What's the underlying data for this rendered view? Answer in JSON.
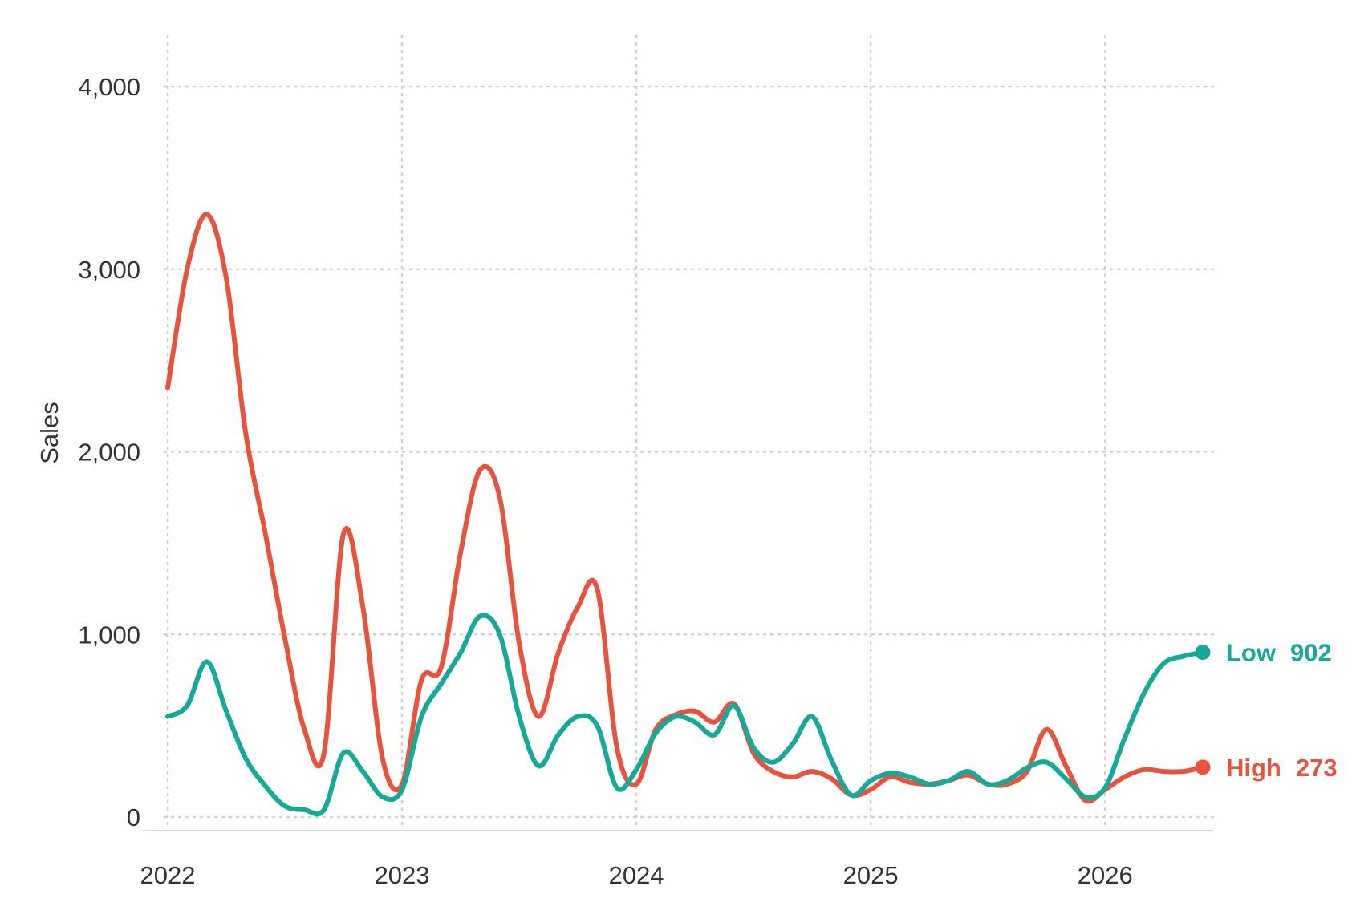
{
  "chart_data": {
    "type": "line",
    "xlabel": "",
    "ylabel": "Sales",
    "xlim": [
      2022,
      2026.5
    ],
    "ylim": [
      -60,
      4280
    ],
    "x_ticks": [
      {
        "value": 2022,
        "label": "2022"
      },
      {
        "value": 2023,
        "label": "2023"
      },
      {
        "value": 2024,
        "label": "2024"
      },
      {
        "value": 2025,
        "label": "2025"
      },
      {
        "value": 2026,
        "label": "2026"
      }
    ],
    "y_ticks": [
      {
        "value": 0,
        "label": "0"
      },
      {
        "value": 1000,
        "label": "1,000"
      },
      {
        "value": 2000,
        "label": "2,000"
      },
      {
        "value": 3000,
        "label": "3,000"
      },
      {
        "value": 4000,
        "label": "4,000"
      }
    ],
    "grid": true,
    "legend": "end-labels",
    "series": [
      {
        "name": "High",
        "color": "#e5543f",
        "end_value_label": "273",
        "x": [
          2022.0,
          2022.083,
          2022.167,
          2022.25,
          2022.333,
          2022.417,
          2022.5,
          2022.583,
          2022.667,
          2022.75,
          2022.833,
          2022.917,
          2023.0,
          2023.083,
          2023.167,
          2023.25,
          2023.333,
          2023.417,
          2023.5,
          2023.583,
          2023.667,
          2023.75,
          2023.833,
          2023.917,
          2024.0,
          2024.083,
          2024.167,
          2024.25,
          2024.333,
          2024.417,
          2024.5,
          2024.583,
          2024.667,
          2024.75,
          2024.833,
          2024.917,
          2025.0,
          2025.083,
          2025.167,
          2025.25,
          2025.333,
          2025.417,
          2025.5,
          2025.583,
          2025.667,
          2025.75,
          2025.833,
          2025.917,
          2026.0,
          2026.083,
          2026.167,
          2026.25,
          2026.333,
          2026.417
        ],
        "y": [
          2350,
          3000,
          3300,
          2950,
          2100,
          1550,
          980,
          480,
          350,
          1550,
          1150,
          320,
          180,
          750,
          820,
          1450,
          1900,
          1750,
          950,
          550,
          900,
          1150,
          1250,
          380,
          180,
          480,
          560,
          580,
          520,
          620,
          350,
          250,
          220,
          250,
          210,
          120,
          150,
          220,
          190,
          180,
          200,
          230,
          180,
          180,
          250,
          480,
          280,
          90,
          150,
          220,
          260,
          250,
          250,
          273
        ]
      },
      {
        "name": "Low",
        "color": "#17a998",
        "end_value_label": "902",
        "x": [
          2022.0,
          2022.083,
          2022.167,
          2022.25,
          2022.333,
          2022.417,
          2022.5,
          2022.583,
          2022.667,
          2022.75,
          2022.833,
          2022.917,
          2023.0,
          2023.083,
          2023.167,
          2023.25,
          2023.333,
          2023.417,
          2023.5,
          2023.583,
          2023.667,
          2023.75,
          2023.833,
          2023.917,
          2024.0,
          2024.083,
          2024.167,
          2024.25,
          2024.333,
          2024.417,
          2024.5,
          2024.583,
          2024.667,
          2024.75,
          2024.833,
          2024.917,
          2025.0,
          2025.083,
          2025.167,
          2025.25,
          2025.333,
          2025.417,
          2025.5,
          2025.583,
          2025.667,
          2025.75,
          2025.833,
          2025.917,
          2026.0,
          2026.083,
          2026.167,
          2026.25,
          2026.333,
          2026.417
        ],
        "y": [
          550,
          610,
          850,
          580,
          320,
          170,
          60,
          40,
          40,
          350,
          250,
          110,
          150,
          550,
          730,
          900,
          1100,
          1000,
          550,
          280,
          450,
          550,
          500,
          160,
          260,
          460,
          550,
          520,
          450,
          610,
          380,
          300,
          400,
          550,
          310,
          120,
          200,
          240,
          220,
          180,
          200,
          250,
          180,
          200,
          270,
          300,
          210,
          110,
          160,
          430,
          680,
          840,
          880,
          902
        ]
      }
    ]
  }
}
